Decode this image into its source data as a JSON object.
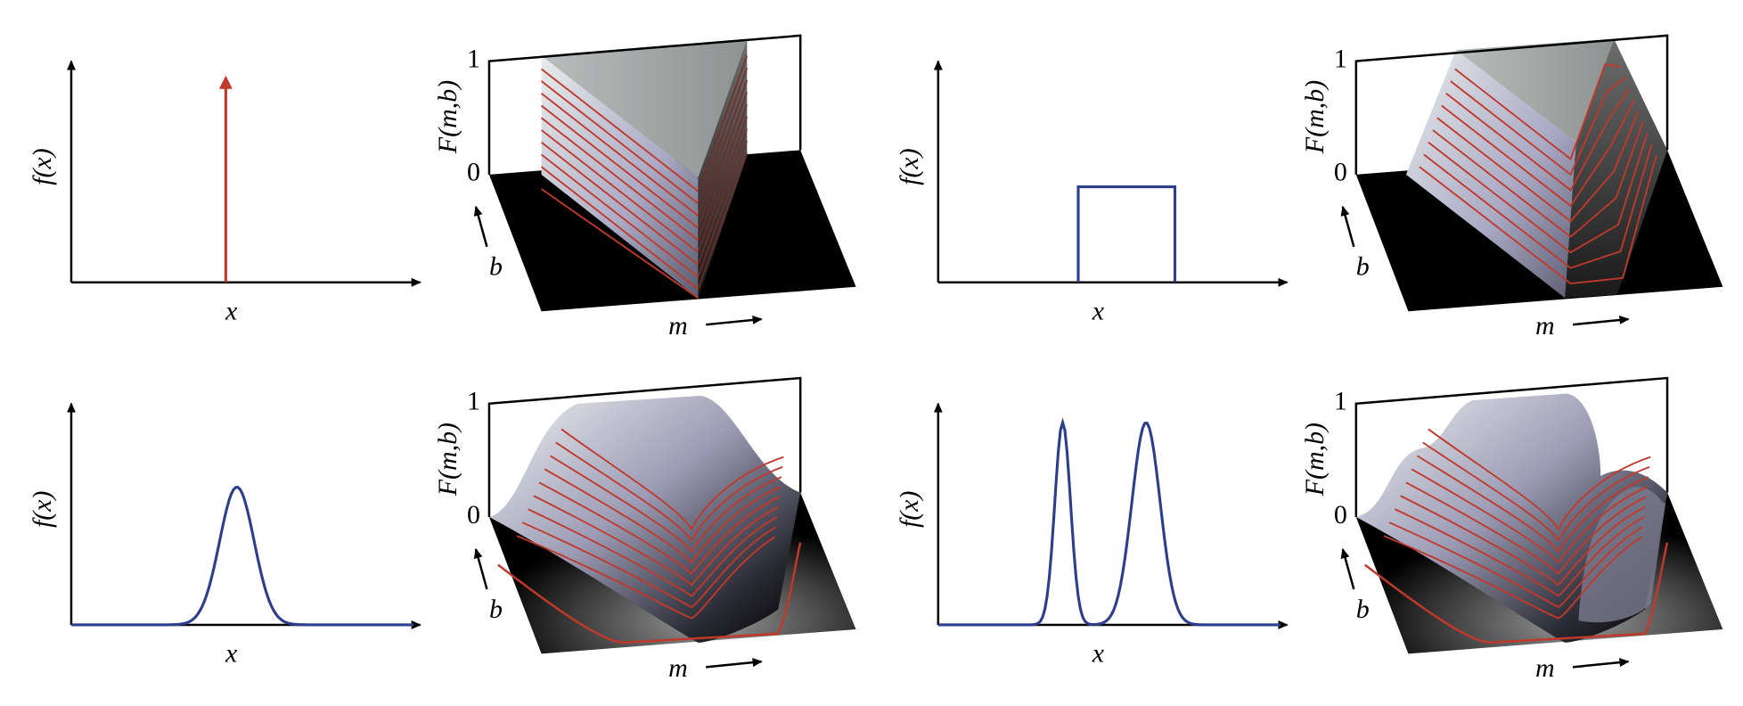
{
  "panels": [
    {
      "kind": "signal",
      "y_label": "f(x)",
      "x_label": "x"
    },
    {
      "kind": "surface",
      "z_label": "F(m,b)",
      "z_ticks": [
        0,
        1
      ],
      "b_label": "b",
      "m_label": "m"
    },
    {
      "kind": "signal",
      "y_label": "f(x)",
      "x_label": "x"
    },
    {
      "kind": "surface",
      "z_label": "F(m,b)",
      "z_ticks": [
        0,
        1
      ],
      "b_label": "b",
      "m_label": "m"
    },
    {
      "kind": "signal",
      "y_label": "f(x)",
      "x_label": "x"
    },
    {
      "kind": "surface",
      "z_label": "F(m,b)",
      "z_ticks": [
        0,
        1
      ],
      "b_label": "b",
      "m_label": "m"
    },
    {
      "kind": "signal",
      "y_label": "f(x)",
      "x_label": "x"
    },
    {
      "kind": "surface",
      "z_label": "F(m,b)",
      "z_ticks": [
        0,
        1
      ],
      "b_label": "b",
      "m_label": "m"
    }
  ]
}
